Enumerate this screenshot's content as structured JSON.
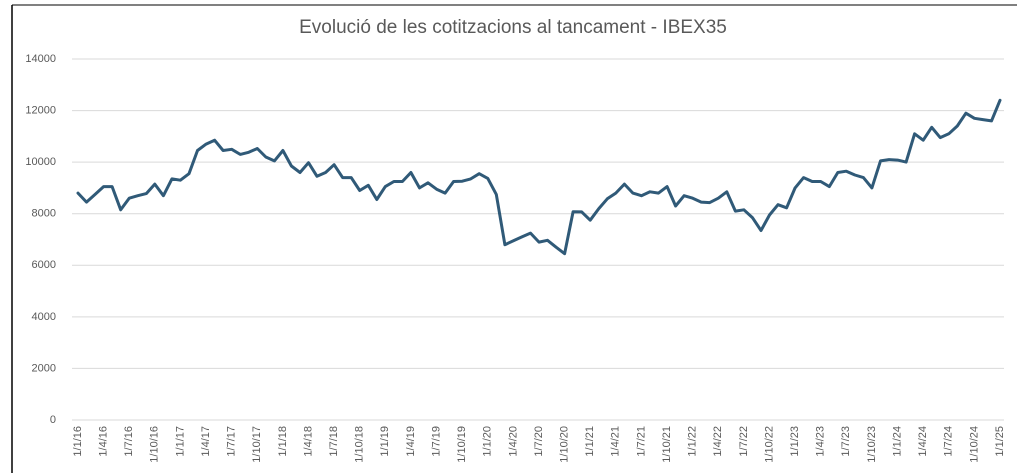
{
  "chart_data": {
    "type": "line",
    "title": "Evolució de les cotitzacions al tancament - IBEX35",
    "categories": [
      "1/1/16",
      null,
      null,
      "1/4/16",
      null,
      null,
      "1/7/16",
      null,
      null,
      "1/10/16",
      null,
      null,
      "1/1/17",
      null,
      null,
      "1/4/17",
      null,
      null,
      "1/7/17",
      null,
      null,
      "1/10/17",
      null,
      null,
      "1/1/18",
      null,
      null,
      "1/4/18",
      null,
      null,
      "1/7/18",
      null,
      null,
      "1/10/18",
      null,
      null,
      "1/1/19",
      null,
      null,
      "1/4/19",
      null,
      null,
      "1/7/19",
      null,
      null,
      "1/10/19",
      null,
      null,
      "1/1/20",
      null,
      null,
      "1/4/20",
      null,
      null,
      "1/7/20",
      null,
      null,
      "1/10/20",
      null,
      null,
      "1/1/21",
      null,
      null,
      "1/4/21",
      null,
      null,
      "1/7/21",
      null,
      null,
      "1/10/21",
      null,
      null,
      "1/1/22",
      null,
      null,
      "1/4/22",
      null,
      null,
      "1/7/22",
      null,
      null,
      "1/10/22",
      null,
      null,
      "1/1/23",
      null,
      null,
      "1/4/23",
      null,
      null,
      "1/7/23",
      null,
      null,
      "1/10/23",
      null,
      null,
      "1/1/24",
      null,
      null,
      "1/4/24",
      null,
      null,
      "1/7/24",
      null,
      null,
      "1/10/24",
      null,
      null,
      "1/1/25"
    ],
    "values": [
      8800,
      8450,
      8750,
      9050,
      9050,
      8150,
      8600,
      8700,
      8780,
      9150,
      8700,
      9350,
      9300,
      9550,
      10450,
      10700,
      10850,
      10450,
      10500,
      10300,
      10380,
      10530,
      10200,
      10050,
      10450,
      9850,
      9600,
      9980,
      9450,
      9600,
      9900,
      9400,
      9400,
      8900,
      9100,
      8550,
      9050,
      9250,
      9250,
      9600,
      9000,
      9200,
      8950,
      8800,
      9250,
      9260,
      9350,
      9550,
      9370,
      8750,
      6800,
      6950,
      7100,
      7250,
      6900,
      6970,
      6700,
      6450,
      8080,
      8070,
      7750,
      8200,
      8580,
      8800,
      9150,
      8800,
      8700,
      8850,
      8800,
      9050,
      8300,
      8700,
      8600,
      8450,
      8430,
      8600,
      8850,
      8100,
      8150,
      7850,
      7350,
      7950,
      8350,
      8230,
      9000,
      9400,
      9250,
      9250,
      9050,
      9600,
      9650,
      9500,
      9400,
      9000,
      10050,
      10100,
      10080,
      10000,
      11100,
      10850,
      11350,
      10950,
      11100,
      11400,
      11900,
      11700,
      11650,
      11600,
      12400
    ],
    "color": "#305a78",
    "ylim": [
      0,
      14000
    ],
    "yticks": [
      0,
      2000,
      4000,
      6000,
      8000,
      10000,
      12000,
      14000
    ],
    "grid": true
  }
}
